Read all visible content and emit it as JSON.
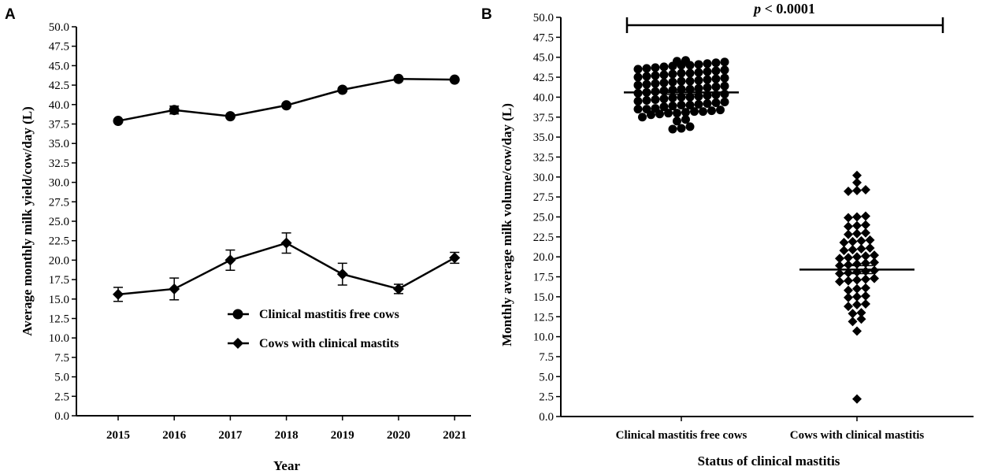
{
  "chart_data": [
    {
      "panel": "A",
      "type": "line",
      "title": "",
      "xlabel": "Year",
      "ylabel": "Average monthly milk yield/cow/day (L)",
      "categories": [
        "2015",
        "2016",
        "2017",
        "2018",
        "2019",
        "2020",
        "2021"
      ],
      "ylim": [
        0,
        50
      ],
      "yticks": [
        "0.0",
        "2.5",
        "5.0",
        "7.5",
        "10.0",
        "12.5",
        "15.0",
        "17.5",
        "20.0",
        "22.5",
        "25.0",
        "27.5",
        "30.0",
        "32.5",
        "35.0",
        "37.5",
        "40.0",
        "42.5",
        "45.0",
        "47.5",
        "50.0"
      ],
      "legend_position": "center-right",
      "series": [
        {
          "name": "Clinical mastitis free cows",
          "marker": "circle",
          "values": [
            37.9,
            39.3,
            38.5,
            39.9,
            41.9,
            43.3,
            43.2
          ],
          "errors": [
            0.3,
            0.5,
            0.3,
            0.3,
            0.3,
            0.3,
            0.2
          ]
        },
        {
          "name": "Cows with clinical mastits",
          "marker": "diamond",
          "values": [
            15.6,
            16.3,
            20.0,
            22.2,
            18.2,
            16.3,
            20.3
          ],
          "errors": [
            0.9,
            1.4,
            1.3,
            1.3,
            1.4,
            0.6,
            0.7
          ]
        }
      ]
    },
    {
      "panel": "B",
      "type": "scatter",
      "title": "",
      "xlabel": "Status of clinical mastitis",
      "ylabel": "Monthly average milk volume/cow/day (L)",
      "categories": [
        "Clinical mastitis free cows",
        "Cows with clinical mastitis"
      ],
      "ylim": [
        0,
        50
      ],
      "yticks": [
        "0.0",
        "2.5",
        "5.0",
        "7.5",
        "10.0",
        "12.5",
        "15.0",
        "17.5",
        "20.0",
        "22.5",
        "25.0",
        "27.5",
        "30.0",
        "32.5",
        "35.0",
        "37.5",
        "40.0",
        "42.5",
        "45.0",
        "47.5",
        "50.0"
      ],
      "annotation": "p < 0.0001",
      "groups": [
        {
          "name": "Clinical mastitis free cows",
          "marker": "circle",
          "mean": 40.6,
          "sem": 0.25,
          "values": [
            36.0,
            36.1,
            36.3,
            37.0,
            37.2,
            37.5,
            37.8,
            37.9,
            38.0,
            38.0,
            38.1,
            38.2,
            38.2,
            38.3,
            38.4,
            38.5,
            38.5,
            38.6,
            38.8,
            38.9,
            39.0,
            39.0,
            39.1,
            39.2,
            39.3,
            39.4,
            39.5,
            39.6,
            39.7,
            39.8,
            39.9,
            40.0,
            40.0,
            40.1,
            40.2,
            40.3,
            40.4,
            40.5,
            40.6,
            40.7,
            40.8,
            40.9,
            41.0,
            41.0,
            41.1,
            41.2,
            41.3,
            41.4,
            41.5,
            41.6,
            41.7,
            41.8,
            41.9,
            42.0,
            42.0,
            42.1,
            42.2,
            42.3,
            42.4,
            42.5,
            42.6,
            42.7,
            42.8,
            42.9,
            43.0,
            43.0,
            43.1,
            43.2,
            43.3,
            43.4,
            43.5,
            43.6,
            43.7,
            43.8,
            43.9,
            44.0,
            44.0,
            44.1,
            44.2,
            44.3,
            44.4,
            44.5,
            44.6
          ]
        },
        {
          "name": "Cows with clinical mastitis",
          "marker": "diamond",
          "mean": 18.4,
          "sem": 0.5,
          "values": [
            2.2,
            10.7,
            11.9,
            12.2,
            12.9,
            13.0,
            13.8,
            14.0,
            14.1,
            14.9,
            15.0,
            15.1,
            15.8,
            16.0,
            16.1,
            16.9,
            17.0,
            17.1,
            17.2,
            17.3,
            17.9,
            18.0,
            18.1,
            18.2,
            18.3,
            18.9,
            19.0,
            19.1,
            19.2,
            19.3,
            19.8,
            19.9,
            20.0,
            20.1,
            20.2,
            20.8,
            20.9,
            21.0,
            21.1,
            21.8,
            21.9,
            22.0,
            22.1,
            22.8,
            22.9,
            23.0,
            23.8,
            23.9,
            24.0,
            24.9,
            25.0,
            25.1,
            28.2,
            28.3,
            28.4,
            29.3,
            30.2
          ]
        }
      ]
    }
  ],
  "panels": {
    "a_letter": "A",
    "b_letter": "B"
  }
}
